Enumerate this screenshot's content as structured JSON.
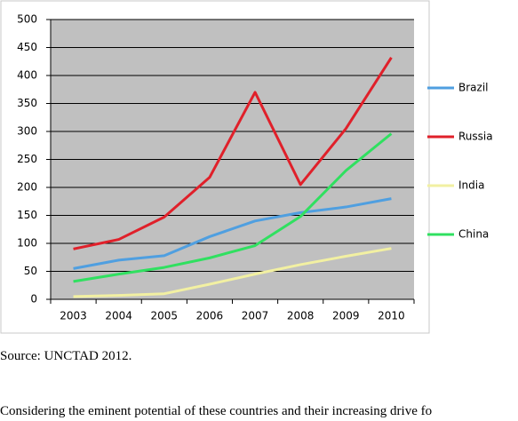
{
  "chart_data": {
    "type": "line",
    "categories": [
      "2003",
      "2004",
      "2005",
      "2006",
      "2007",
      "2008",
      "2009",
      "2010"
    ],
    "series": [
      {
        "name": "Brazil",
        "color": "#4f9fe0",
        "values": [
          55,
          70,
          78,
          112,
          140,
          155,
          165,
          180
        ]
      },
      {
        "name": "Russia",
        "color": "#e0202a",
        "values": [
          90,
          107,
          147,
          218,
          370,
          205,
          305,
          432
        ]
      },
      {
        "name": "India",
        "color": "#f2f0a2",
        "values": [
          5,
          7,
          10,
          27,
          45,
          62,
          77,
          91
        ]
      },
      {
        "name": "China",
        "color": "#30e060",
        "values": [
          32,
          45,
          57,
          74,
          96,
          148,
          230,
          296
        ]
      }
    ],
    "ylim": [
      0,
      500
    ],
    "yticks": [
      0,
      50,
      100,
      150,
      200,
      250,
      300,
      350,
      400,
      450,
      500
    ],
    "grid": true,
    "legend": "right"
  },
  "source": "Source: UNCTAD 2012.",
  "body_text": "Considering the eminent potential of these countries and their increasing drive fo"
}
